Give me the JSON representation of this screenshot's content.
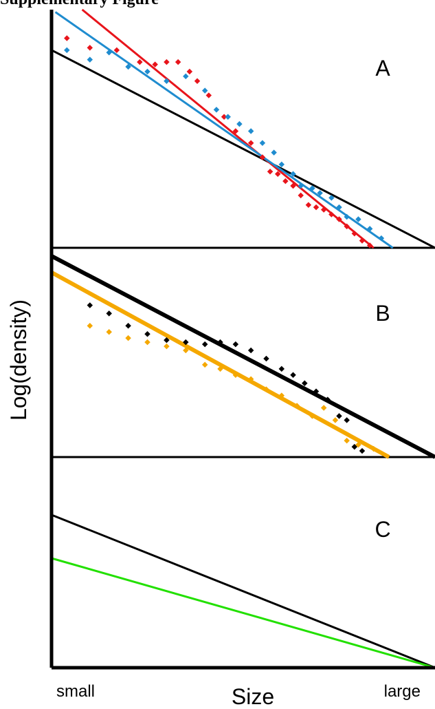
{
  "heading": "Supplementary Figure",
  "chart_data": {
    "type": "scatter",
    "ylabel": "Log(density)",
    "xlabel": "Size",
    "x_tick_labels": [
      "small",
      "large"
    ],
    "x_scale": "log",
    "y_scale": "log",
    "colors": {
      "axis": "#000000",
      "red": "#e8141b",
      "blue": "#1f8ccf",
      "black": "#000000",
      "orange": "#f5a800",
      "green": "#22e000"
    },
    "panels": [
      {
        "label": "A",
        "reference_line": {
          "color": "#000000",
          "x": [
            0,
            1
          ],
          "y": [
            0.83,
            0
          ]
        },
        "fit_lines": [
          {
            "color": "#e8141b",
            "x": [
              0.08,
              0.84
            ],
            "y": [
              1.0,
              0.0
            ]
          },
          {
            "color": "#1f8ccf",
            "x": [
              0.01,
              0.89
            ],
            "y": [
              0.99,
              0.0
            ]
          }
        ],
        "series": [
          {
            "color": "#e8141b",
            "x": [
              0.04,
              0.1,
              0.17,
              0.23,
              0.27,
              0.3,
              0.33,
              0.36,
              0.38,
              0.41,
              0.45,
              0.48,
              0.52,
              0.55,
              0.57,
              0.59,
              0.61,
              0.63,
              0.65,
              0.67,
              0.69,
              0.71,
              0.73,
              0.75,
              0.77,
              0.79,
              0.81,
              0.83
            ],
            "y": [
              0.88,
              0.84,
              0.83,
              0.78,
              0.77,
              0.78,
              0.78,
              0.74,
              0.7,
              0.64,
              0.55,
              0.49,
              0.44,
              0.38,
              0.32,
              0.31,
              0.28,
              0.26,
              0.22,
              0.18,
              0.17,
              0.16,
              0.14,
              0.12,
              0.09,
              0.06,
              0.03,
              0.01
            ]
          },
          {
            "color": "#1f8ccf",
            "x": [
              0.04,
              0.1,
              0.15,
              0.2,
              0.25,
              0.3,
              0.35,
              0.4,
              0.43,
              0.46,
              0.49,
              0.52,
              0.55,
              0.58,
              0.6,
              0.63,
              0.65,
              0.68,
              0.7,
              0.73,
              0.75,
              0.77,
              0.8,
              0.83,
              0.86
            ],
            "y": [
              0.83,
              0.79,
              0.82,
              0.76,
              0.74,
              0.7,
              0.72,
              0.66,
              0.58,
              0.55,
              0.52,
              0.49,
              0.44,
              0.4,
              0.35,
              0.31,
              0.26,
              0.25,
              0.23,
              0.21,
              0.17,
              0.13,
              0.12,
              0.08,
              0.04
            ]
          }
        ]
      },
      {
        "label": "B",
        "reference_line": {
          "color": "#000000",
          "x": [
            0,
            1
          ],
          "y": [
            0.98,
            0
          ]
        },
        "fit_lines": [
          {
            "color": "#f5a800",
            "x": [
              0,
              0.88
            ],
            "y": [
              0.9,
              0.0
            ]
          }
        ],
        "series": [
          {
            "color": "#000000",
            "x": [
              0.1,
              0.15,
              0.2,
              0.25,
              0.3,
              0.35,
              0.4,
              0.44,
              0.48,
              0.52,
              0.56,
              0.6,
              0.63,
              0.66,
              0.69,
              0.72,
              0.75,
              0.77,
              0.79,
              0.81
            ],
            "y": [
              0.74,
              0.7,
              0.64,
              0.6,
              0.57,
              0.56,
              0.55,
              0.56,
              0.55,
              0.52,
              0.48,
              0.43,
              0.4,
              0.36,
              0.32,
              0.28,
              0.2,
              0.18,
              0.05,
              0.03
            ]
          },
          {
            "color": "#f5a800",
            "x": [
              0.1,
              0.15,
              0.2,
              0.25,
              0.3,
              0.35,
              0.4,
              0.44,
              0.48,
              0.52,
              0.56,
              0.6,
              0.64,
              0.68,
              0.71,
              0.74,
              0.77,
              0.8,
              0.84
            ],
            "y": [
              0.64,
              0.61,
              0.58,
              0.56,
              0.54,
              0.52,
              0.45,
              0.43,
              0.4,
              0.38,
              0.33,
              0.3,
              0.25,
              0.2,
              0.24,
              0.18,
              0.08,
              0.06,
              0.04
            ]
          }
        ]
      },
      {
        "label": "C",
        "reference_line": {
          "color": "#000000",
          "x": [
            0,
            1
          ],
          "y": [
            0.74,
            0
          ]
        },
        "fit_lines": [
          {
            "color": "#22e000",
            "x": [
              0,
              1
            ],
            "y": [
              0.53,
              0
            ]
          }
        ],
        "series": []
      }
    ]
  }
}
